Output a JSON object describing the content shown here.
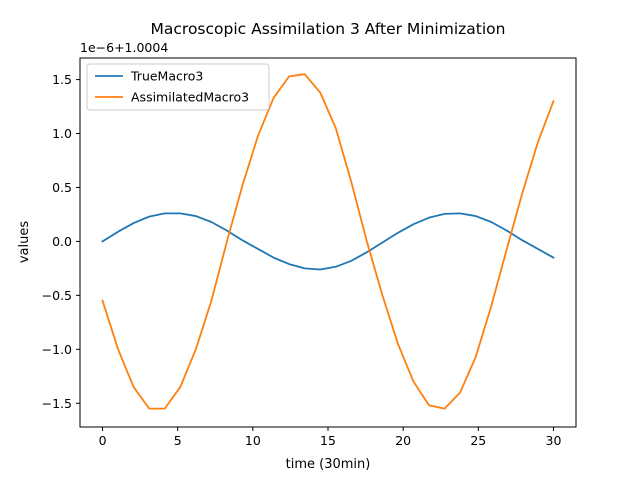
{
  "chart_data": {
    "type": "line",
    "title": "Macroscopic Assimilation 3 After Minimization",
    "xlabel": "time (30min)",
    "ylabel": "values",
    "offset_text": "1e−6+1.0004",
    "xlim": [
      -1.5,
      31.5
    ],
    "ylim": [
      -1.72,
      1.7
    ],
    "grid": false,
    "legend_position": "upper-left",
    "xticks": [
      0,
      5,
      10,
      15,
      20,
      25,
      30
    ],
    "xtick_labels": [
      "0",
      "5",
      "10",
      "15",
      "20",
      "25",
      "30"
    ],
    "yticks": [
      -1.5,
      -1.0,
      -0.5,
      0.0,
      0.5,
      1.0,
      1.5
    ],
    "ytick_labels": [
      "−1.5",
      "−1.0",
      "−0.5",
      "0.0",
      "0.5",
      "1.0",
      "1.5"
    ],
    "x": [
      0,
      1.034,
      2.069,
      3.103,
      4.138,
      5.172,
      6.207,
      7.241,
      8.276,
      9.31,
      10.345,
      11.379,
      12.414,
      13.448,
      14.483,
      15.517,
      16.552,
      17.586,
      18.621,
      19.655,
      20.69,
      21.724,
      22.759,
      23.793,
      24.828,
      25.862,
      26.897,
      27.931,
      28.966,
      30
    ],
    "series": [
      {
        "name": "TrueMacro3",
        "color": "#1f77b4",
        "values": [
          0.0,
          0.09,
          0.17,
          0.23,
          0.26,
          0.26,
          0.235,
          0.18,
          0.1,
          0.01,
          -0.07,
          -0.15,
          -0.21,
          -0.25,
          -0.26,
          -0.235,
          -0.18,
          -0.1,
          -0.01,
          0.08,
          0.16,
          0.22,
          0.255,
          0.26,
          0.235,
          0.18,
          0.1,
          0.01,
          -0.07,
          -0.15
        ]
      },
      {
        "name": "AssimilatedMacro3",
        "color": "#ff7f0e",
        "values": [
          -0.55,
          -1.0,
          -1.35,
          -1.55,
          -1.55,
          -1.35,
          -1.0,
          -0.55,
          0.0,
          0.52,
          0.98,
          1.33,
          1.53,
          1.55,
          1.38,
          1.05,
          0.55,
          0.0,
          -0.5,
          -0.95,
          -1.3,
          -1.52,
          -1.55,
          -1.4,
          -1.07,
          -0.6,
          -0.07,
          0.45,
          0.92,
          1.3
        ]
      }
    ]
  }
}
